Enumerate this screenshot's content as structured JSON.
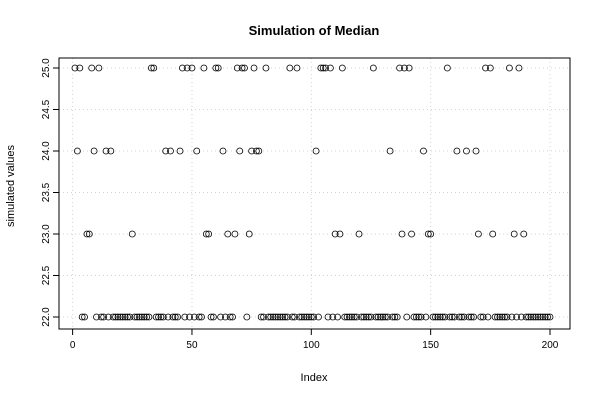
{
  "chart_data": {
    "type": "scatter",
    "title": "Simulation of Median",
    "xlabel": "Index",
    "ylabel": "simulated values",
    "xlim": [
      1,
      200
    ],
    "ylim": [
      22,
      25
    ],
    "xticks": [
      0,
      50,
      100,
      150,
      200
    ],
    "yticks": [
      "22.0",
      "22.5",
      "23.0",
      "23.5",
      "24.0",
      "24.5",
      "25.0"
    ],
    "grid": true,
    "marker": "open-circle",
    "colors": {
      "marker": "#000000",
      "grid": "#d3d3d3",
      "axis": "#000000"
    },
    "x": [
      1,
      2,
      3,
      4,
      5,
      6,
      7,
      8,
      9,
      10,
      11,
      12,
      13,
      14,
      15,
      16,
      17,
      18,
      19,
      20,
      21,
      22,
      23,
      24,
      25,
      26,
      27,
      28,
      29,
      30,
      31,
      32,
      33,
      34,
      35,
      36,
      37,
      38,
      39,
      40,
      41,
      42,
      43,
      44,
      45,
      46,
      47,
      48,
      49,
      50,
      51,
      52,
      53,
      54,
      55,
      56,
      57,
      58,
      59,
      60,
      61,
      62,
      63,
      64,
      65,
      66,
      67,
      68,
      69,
      70,
      71,
      72,
      73,
      74,
      75,
      76,
      77,
      78,
      79,
      80,
      81,
      82,
      83,
      84,
      85,
      86,
      87,
      88,
      89,
      90,
      91,
      92,
      93,
      94,
      95,
      96,
      97,
      98,
      99,
      100,
      101,
      102,
      103,
      104,
      105,
      106,
      107,
      108,
      109,
      110,
      111,
      112,
      113,
      114,
      115,
      116,
      117,
      118,
      119,
      120,
      121,
      122,
      123,
      124,
      125,
      126,
      127,
      128,
      129,
      130,
      131,
      132,
      133,
      134,
      135,
      136,
      137,
      138,
      139,
      140,
      141,
      142,
      143,
      144,
      145,
      146,
      147,
      148,
      149,
      150,
      151,
      152,
      153,
      154,
      155,
      156,
      157,
      158,
      159,
      160,
      161,
      162,
      163,
      164,
      165,
      166,
      167,
      168,
      169,
      170,
      171,
      172,
      173,
      174,
      175,
      176,
      177,
      178,
      179,
      180,
      181,
      182,
      183,
      184,
      185,
      186,
      187,
      188,
      189,
      190,
      191,
      192,
      193,
      194,
      195,
      196,
      197,
      198,
      199,
      200
    ],
    "y": [
      25,
      24,
      25,
      22,
      22,
      23,
      23,
      25,
      24,
      22,
      25,
      22,
      22,
      24,
      22,
      24,
      22,
      22,
      22,
      22,
      22,
      22,
      22,
      22,
      23,
      22,
      22,
      22,
      22,
      22,
      22,
      22,
      25,
      25,
      22,
      22,
      22,
      22,
      24,
      22,
      24,
      22,
      22,
      22,
      24,
      25,
      22,
      25,
      22,
      25,
      22,
      24,
      22,
      22,
      25,
      23,
      23,
      22,
      22,
      25,
      25,
      22,
      24,
      22,
      23,
      22,
      22,
      23,
      25,
      24,
      25,
      25,
      22,
      23,
      24,
      25,
      24,
      24,
      22,
      22,
      25,
      22,
      22,
      22,
      22,
      22,
      22,
      22,
      22,
      22,
      25,
      22,
      22,
      25,
      22,
      22,
      22,
      22,
      22,
      22,
      22,
      24,
      22,
      25,
      25,
      25,
      22,
      25,
      22,
      23,
      22,
      23,
      25,
      22,
      22,
      22,
      22,
      22,
      22,
      23,
      22,
      22,
      22,
      22,
      22,
      25,
      22,
      22,
      22,
      22,
      22,
      22,
      24,
      22,
      22,
      22,
      25,
      23,
      25,
      22,
      25,
      23,
      22,
      22,
      22,
      22,
      24,
      22,
      23,
      23,
      22,
      22,
      22,
      22,
      22,
      22,
      25,
      22,
      22,
      22,
      24,
      22,
      22,
      22,
      24,
      22,
      22,
      22,
      24,
      23,
      22,
      22,
      25,
      22,
      25,
      23,
      22,
      22,
      22,
      22,
      22,
      22,
      25,
      22,
      23,
      22,
      25,
      22,
      23,
      22,
      22,
      22,
      22,
      22,
      22,
      22,
      22,
      22,
      22,
      22
    ]
  }
}
